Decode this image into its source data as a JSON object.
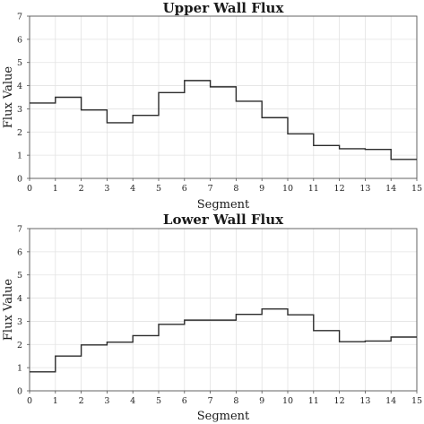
{
  "chart_data": [
    {
      "type": "line",
      "style": "step",
      "title": "Upper Wall Flux",
      "xlabel": "Segment",
      "ylabel": "Flux Value",
      "xlim": [
        0,
        15
      ],
      "ylim": [
        0,
        7
      ],
      "xticks": [
        "0",
        "1",
        "2",
        "3",
        "4",
        "5",
        "6",
        "7",
        "8",
        "9",
        "10",
        "11",
        "12",
        "13",
        "14",
        "15"
      ],
      "yticks": [
        "0",
        "1",
        "2",
        "3",
        "4",
        "5",
        "6",
        "7"
      ],
      "grid": true,
      "x": [
        0,
        1,
        2,
        3,
        4,
        5,
        6,
        7,
        8,
        9,
        10,
        11,
        12,
        13,
        14
      ],
      "values": [
        3.25,
        3.5,
        2.95,
        2.4,
        2.72,
        3.7,
        4.22,
        3.95,
        3.33,
        2.62,
        1.92,
        1.42,
        1.28,
        1.25,
        0.82
      ],
      "color": "#2b2b2b"
    },
    {
      "type": "line",
      "style": "step",
      "title": "Lower Wall Flux",
      "xlabel": "Segment",
      "ylabel": "Flux Value",
      "xlim": [
        0,
        15
      ],
      "ylim": [
        0,
        7
      ],
      "xticks": [
        "0",
        "1",
        "2",
        "3",
        "4",
        "5",
        "6",
        "7",
        "8",
        "9",
        "10",
        "11",
        "12",
        "13",
        "14",
        "15"
      ],
      "yticks": [
        "0",
        "1",
        "2",
        "3",
        "4",
        "5",
        "6",
        "7"
      ],
      "grid": true,
      "x": [
        0,
        1,
        2,
        3,
        4,
        5,
        6,
        7,
        8,
        9,
        10,
        11,
        12,
        13,
        14
      ],
      "values": [
        0.82,
        1.5,
        1.98,
        2.1,
        2.38,
        2.87,
        3.05,
        3.05,
        3.3,
        3.53,
        3.28,
        2.6,
        2.12,
        2.15,
        2.32
      ],
      "color": "#2b2b2b"
    }
  ]
}
